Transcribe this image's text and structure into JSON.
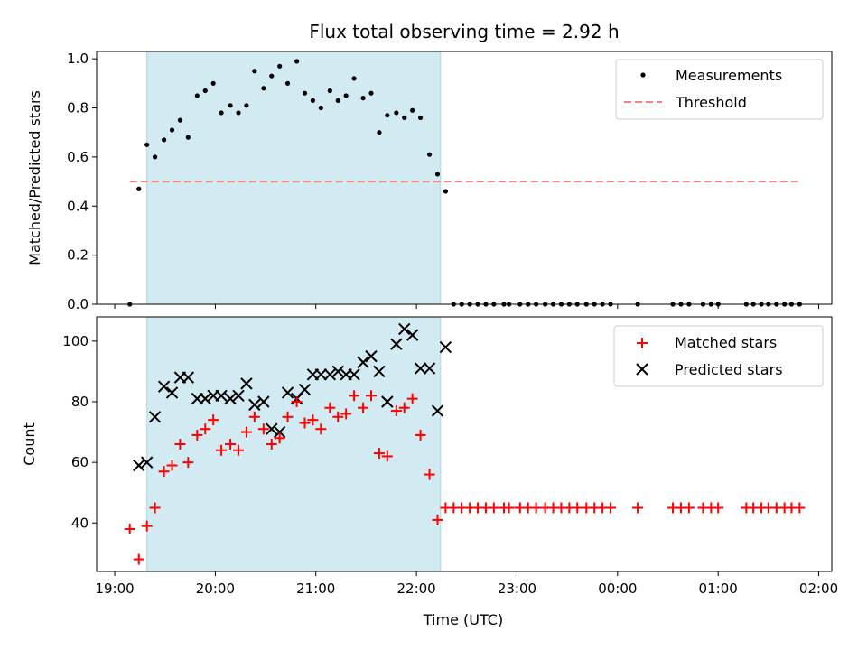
{
  "chart_data": {
    "type": "scatter",
    "title": "Flux total observing time = 2.92 h",
    "xlabel": "Time (UTC)",
    "x_tick_labels": [
      "19:00",
      "20:00",
      "21:00",
      "22:00",
      "23:00",
      "00:00",
      "01:00",
      "02:00"
    ],
    "x_ticks_hours": [
      0,
      1,
      2,
      3,
      4,
      5,
      6,
      7
    ],
    "xlim_hours": [
      -0.18,
      7.13
    ],
    "shaded_interval_hours": [
      0.32,
      3.24
    ],
    "colors": {
      "shade": "#add8e6",
      "measurements": "#000000",
      "threshold": "#ff7f7f",
      "matched": "#ff0000",
      "predicted": "#000000"
    },
    "panels": [
      {
        "ylabel": "Matched/Predicted stars",
        "ylim": [
          0,
          1.03
        ],
        "y_ticks": [
          0.0,
          0.2,
          0.4,
          0.6,
          0.8,
          1.0
        ],
        "y_tick_labels": [
          "0.0",
          "0.2",
          "0.4",
          "0.6",
          "0.8",
          "1.0"
        ],
        "legend_position": "top-right",
        "legend": [
          {
            "name": "Measurements",
            "marker": "dot"
          },
          {
            "name": "Threshold",
            "marker": "dashed-line"
          }
        ],
        "threshold": {
          "name": "Threshold",
          "y": 0.5,
          "x_range_hours": [
            0.15,
            6.8
          ]
        },
        "series": [
          {
            "name": "Measurements",
            "marker": "dot",
            "points": [
              [
                0.15,
                0.0
              ],
              [
                0.24,
                0.47
              ],
              [
                0.32,
                0.65
              ],
              [
                0.4,
                0.6
              ],
              [
                0.49,
                0.67
              ],
              [
                0.57,
                0.71
              ],
              [
                0.65,
                0.75
              ],
              [
                0.73,
                0.68
              ],
              [
                0.82,
                0.85
              ],
              [
                0.9,
                0.87
              ],
              [
                0.98,
                0.9
              ],
              [
                1.06,
                0.78
              ],
              [
                1.15,
                0.81
              ],
              [
                1.23,
                0.78
              ],
              [
                1.31,
                0.81
              ],
              [
                1.39,
                0.95
              ],
              [
                1.48,
                0.88
              ],
              [
                1.56,
                0.93
              ],
              [
                1.64,
                0.97
              ],
              [
                1.72,
                0.9
              ],
              [
                1.81,
                0.99
              ],
              [
                1.89,
                0.86
              ],
              [
                1.97,
                0.83
              ],
              [
                2.05,
                0.8
              ],
              [
                2.14,
                0.87
              ],
              [
                2.22,
                0.83
              ],
              [
                2.3,
                0.85
              ],
              [
                2.38,
                0.92
              ],
              [
                2.47,
                0.84
              ],
              [
                2.55,
                0.86
              ],
              [
                2.63,
                0.7
              ],
              [
                2.71,
                0.77
              ],
              [
                2.8,
                0.78
              ],
              [
                2.88,
                0.76
              ],
              [
                2.96,
                0.79
              ],
              [
                3.04,
                0.76
              ],
              [
                3.13,
                0.61
              ],
              [
                3.21,
                0.53
              ],
              [
                3.29,
                0.46
              ],
              [
                3.37,
                0.0
              ],
              [
                3.45,
                0.0
              ],
              [
                3.53,
                0.0
              ],
              [
                3.61,
                0.0
              ],
              [
                3.69,
                0.0
              ],
              [
                3.77,
                0.0
              ],
              [
                3.87,
                0.0
              ],
              [
                3.92,
                0.0
              ],
              [
                4.03,
                0.0
              ],
              [
                4.11,
                0.0
              ],
              [
                4.19,
                0.0
              ],
              [
                4.28,
                0.0
              ],
              [
                4.36,
                0.0
              ],
              [
                4.44,
                0.0
              ],
              [
                4.52,
                0.0
              ],
              [
                4.6,
                0.0
              ],
              [
                4.69,
                0.0
              ],
              [
                4.77,
                0.0
              ],
              [
                4.85,
                0.0
              ],
              [
                4.93,
                0.0
              ],
              [
                5.2,
                0.0
              ],
              [
                5.55,
                0.0
              ],
              [
                5.63,
                0.0
              ],
              [
                5.71,
                0.0
              ],
              [
                5.85,
                0.0
              ],
              [
                5.93,
                0.0
              ],
              [
                6.0,
                0.0
              ],
              [
                6.28,
                0.0
              ],
              [
                6.35,
                0.0
              ],
              [
                6.43,
                0.0
              ],
              [
                6.5,
                0.0
              ],
              [
                6.58,
                0.0
              ],
              [
                6.66,
                0.0
              ],
              [
                6.73,
                0.0
              ],
              [
                6.81,
                0.0
              ]
            ]
          }
        ]
      },
      {
        "ylabel": "Count",
        "ylim": [
          24,
          108
        ],
        "y_ticks": [
          40,
          60,
          80,
          100
        ],
        "y_tick_labels": [
          "40",
          "60",
          "80",
          "100"
        ],
        "legend_position": "top-right",
        "legend": [
          {
            "name": "Matched stars",
            "marker": "plus"
          },
          {
            "name": "Predicted stars",
            "marker": "x"
          }
        ],
        "series": [
          {
            "name": "Matched stars",
            "marker": "plus",
            "points": [
              [
                0.15,
                38
              ],
              [
                0.24,
                28
              ],
              [
                0.32,
                39
              ],
              [
                0.4,
                45
              ],
              [
                0.49,
                57
              ],
              [
                0.57,
                59
              ],
              [
                0.65,
                66
              ],
              [
                0.73,
                60
              ],
              [
                0.82,
                69
              ],
              [
                0.9,
                71
              ],
              [
                0.98,
                74
              ],
              [
                1.06,
                64
              ],
              [
                1.15,
                66
              ],
              [
                1.23,
                64
              ],
              [
                1.31,
                70
              ],
              [
                1.39,
                75
              ],
              [
                1.48,
                71
              ],
              [
                1.56,
                66
              ],
              [
                1.64,
                68
              ],
              [
                1.72,
                75
              ],
              [
                1.81,
                80
              ],
              [
                1.89,
                73
              ],
              [
                1.97,
                74
              ],
              [
                2.05,
                71
              ],
              [
                2.14,
                78
              ],
              [
                2.22,
                75
              ],
              [
                2.3,
                76
              ],
              [
                2.38,
                82
              ],
              [
                2.47,
                78
              ],
              [
                2.55,
                82
              ],
              [
                2.63,
                63
              ],
              [
                2.71,
                62
              ],
              [
                2.8,
                77
              ],
              [
                2.88,
                78
              ],
              [
                2.96,
                81
              ],
              [
                3.04,
                69
              ],
              [
                3.13,
                56
              ],
              [
                3.21,
                41
              ],
              [
                3.29,
                45
              ],
              [
                3.37,
                45
              ],
              [
                3.45,
                45
              ],
              [
                3.53,
                45
              ],
              [
                3.61,
                45
              ],
              [
                3.69,
                45
              ],
              [
                3.77,
                45
              ],
              [
                3.87,
                45
              ],
              [
                3.92,
                45
              ],
              [
                4.03,
                45
              ],
              [
                4.11,
                45
              ],
              [
                4.19,
                45
              ],
              [
                4.28,
                45
              ],
              [
                4.36,
                45
              ],
              [
                4.44,
                45
              ],
              [
                4.52,
                45
              ],
              [
                4.6,
                45
              ],
              [
                4.69,
                45
              ],
              [
                4.77,
                45
              ],
              [
                4.85,
                45
              ],
              [
                4.93,
                45
              ],
              [
                5.2,
                45
              ],
              [
                5.55,
                45
              ],
              [
                5.63,
                45
              ],
              [
                5.71,
                45
              ],
              [
                5.85,
                45
              ],
              [
                5.93,
                45
              ],
              [
                6.0,
                45
              ],
              [
                6.28,
                45
              ],
              [
                6.35,
                45
              ],
              [
                6.43,
                45
              ],
              [
                6.5,
                45
              ],
              [
                6.58,
                45
              ],
              [
                6.66,
                45
              ],
              [
                6.73,
                45
              ],
              [
                6.81,
                45
              ]
            ]
          },
          {
            "name": "Predicted stars",
            "marker": "x",
            "points": [
              [
                0.24,
                59
              ],
              [
                0.32,
                60
              ],
              [
                0.4,
                75
              ],
              [
                0.49,
                85
              ],
              [
                0.57,
                83
              ],
              [
                0.65,
                88
              ],
              [
                0.73,
                88
              ],
              [
                0.82,
                81
              ],
              [
                0.9,
                81
              ],
              [
                0.98,
                82
              ],
              [
                1.06,
                82
              ],
              [
                1.15,
                81
              ],
              [
                1.23,
                82
              ],
              [
                1.31,
                86
              ],
              [
                1.39,
                79
              ],
              [
                1.48,
                80
              ],
              [
                1.56,
                71
              ],
              [
                1.64,
                70
              ],
              [
                1.72,
                83
              ],
              [
                1.81,
                81
              ],
              [
                1.89,
                84
              ],
              [
                1.97,
                89
              ],
              [
                2.05,
                89
              ],
              [
                2.14,
                89
              ],
              [
                2.22,
                90
              ],
              [
                2.3,
                89
              ],
              [
                2.38,
                89
              ],
              [
                2.47,
                93
              ],
              [
                2.55,
                95
              ],
              [
                2.63,
                90
              ],
              [
                2.71,
                80
              ],
              [
                2.8,
                99
              ],
              [
                2.88,
                104
              ],
              [
                2.96,
                102
              ],
              [
                3.04,
                91
              ],
              [
                3.13,
                91
              ],
              [
                3.21,
                77
              ],
              [
                3.29,
                98
              ]
            ]
          }
        ]
      }
    ]
  }
}
